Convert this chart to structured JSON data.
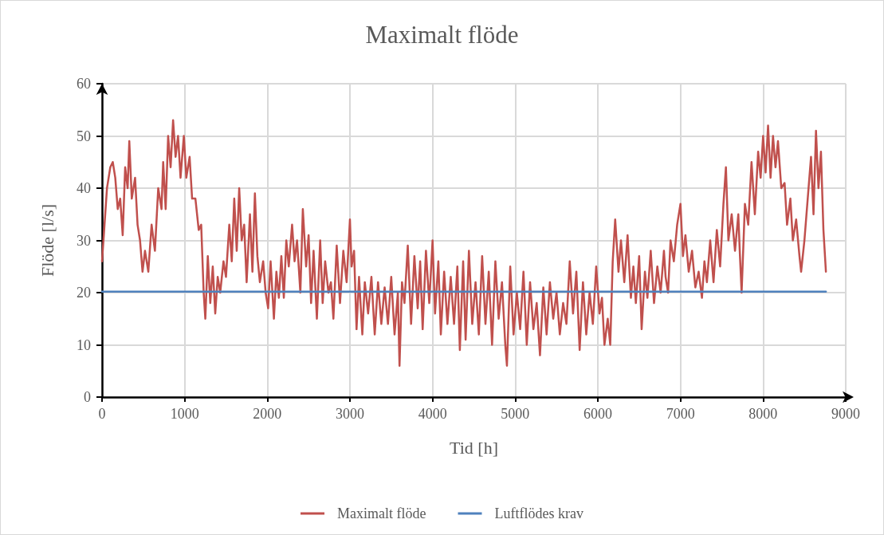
{
  "chart_data": {
    "type": "line",
    "title": "Maximalt flöde",
    "xlabel": "Tid [h]",
    "ylabel": "Flöde [l/s]",
    "xlim": [
      0,
      9000
    ],
    "xticks": [
      0,
      1000,
      2000,
      3000,
      4000,
      5000,
      6000,
      7000,
      8000,
      9000
    ],
    "ylim": [
      0,
      60
    ],
    "yticks": [
      0,
      10,
      20,
      30,
      40,
      50,
      60
    ],
    "grid": true,
    "legend": "bottom",
    "marker": "none",
    "line_style": "solid",
    "x": [
      0,
      30,
      60,
      100,
      130,
      160,
      190,
      220,
      250,
      280,
      310,
      330,
      360,
      400,
      430,
      460,
      490,
      520,
      560,
      600,
      640,
      680,
      720,
      740,
      770,
      800,
      830,
      860,
      890,
      920,
      950,
      990,
      1020,
      1060,
      1090,
      1130,
      1170,
      1200,
      1230,
      1250,
      1280,
      1310,
      1340,
      1370,
      1400,
      1430,
      1470,
      1500,
      1540,
      1570,
      1600,
      1630,
      1660,
      1690,
      1720,
      1750,
      1790,
      1820,
      1850,
      1880,
      1910,
      1950,
      1980,
      2010,
      2040,
      2080,
      2110,
      2140,
      2170,
      2200,
      2230,
      2260,
      2300,
      2330,
      2360,
      2400,
      2430,
      2470,
      2500,
      2530,
      2560,
      2600,
      2640,
      2670,
      2700,
      2740,
      2770,
      2800,
      2840,
      2880,
      2920,
      2960,
      3000,
      3020,
      3050,
      3080,
      3110,
      3150,
      3180,
      3220,
      3260,
      3300,
      3340,
      3380,
      3420,
      3460,
      3500,
      3540,
      3580,
      3600,
      3630,
      3660,
      3700,
      3740,
      3780,
      3820,
      3850,
      3880,
      3920,
      3960,
      4000,
      4030,
      4070,
      4100,
      4140,
      4180,
      4220,
      4260,
      4300,
      4330,
      4370,
      4400,
      4440,
      4480,
      4520,
      4560,
      4600,
      4640,
      4680,
      4720,
      4760,
      4800,
      4840,
      4880,
      4900,
      4940,
      4980,
      5020,
      5060,
      5100,
      5140,
      5180,
      5220,
      5260,
      5300,
      5340,
      5380,
      5420,
      5460,
      5500,
      5540,
      5580,
      5620,
      5660,
      5700,
      5740,
      5780,
      5820,
      5860,
      5900,
      5940,
      5980,
      6020,
      6050,
      6080,
      6120,
      6150,
      6180,
      6210,
      6250,
      6280,
      6320,
      6360,
      6400,
      6430,
      6460,
      6500,
      6530,
      6570,
      6600,
      6640,
      6680,
      6720,
      6760,
      6800,
      6820,
      6850,
      6880,
      6920,
      6960,
      7000,
      7030,
      7060,
      7100,
      7140,
      7180,
      7220,
      7260,
      7290,
      7320,
      7360,
      7400,
      7440,
      7480,
      7520,
      7550,
      7580,
      7620,
      7660,
      7700,
      7720,
      7740,
      7780,
      7820,
      7860,
      7900,
      7940,
      7970,
      8000,
      8030,
      8060,
      8090,
      8120,
      8150,
      8180,
      8220,
      8260,
      8290,
      8330,
      8360,
      8400,
      8440,
      8460,
      8500,
      8540,
      8580,
      8610,
      8640,
      8670,
      8700,
      8730,
      8760
    ],
    "series": [
      {
        "name": "Maximalt flöde",
        "color": "#c0504d",
        "values": [
          26,
          33,
          40,
          44,
          45,
          42,
          36,
          38,
          31,
          44,
          40,
          49,
          38,
          42,
          33,
          30,
          24,
          28,
          24,
          33,
          28,
          40,
          36,
          45,
          36,
          50,
          44,
          53,
          46,
          50,
          42,
          50,
          42,
          46,
          38,
          38,
          32,
          33,
          20,
          15,
          27,
          18,
          25,
          16,
          23,
          20,
          26,
          23,
          33,
          26,
          38,
          28,
          40,
          30,
          33,
          22,
          35,
          24,
          39,
          27,
          22,
          26,
          20,
          17,
          26,
          15,
          24,
          19,
          27,
          19,
          30,
          25,
          33,
          26,
          30,
          20,
          36,
          25,
          31,
          18,
          28,
          15,
          30,
          18,
          26,
          20,
          22,
          15,
          29,
          18,
          28,
          22,
          34,
          25,
          28,
          13,
          23,
          12,
          22,
          16,
          23,
          12,
          22,
          14,
          21,
          14,
          23,
          12,
          20,
          6,
          22,
          18,
          29,
          14,
          27,
          17,
          26,
          13,
          28,
          18,
          30,
          16,
          26,
          12,
          24,
          14,
          23,
          14,
          25,
          9,
          26,
          11,
          28,
          14,
          22,
          12,
          27,
          14,
          24,
          10,
          26,
          15,
          22,
          10,
          6,
          25,
          12,
          20,
          13,
          24,
          10,
          22,
          13,
          18,
          8,
          21,
          12,
          22,
          15,
          20,
          12,
          18,
          14,
          26,
          16,
          24,
          9,
          22,
          12,
          20,
          14,
          25,
          16,
          19,
          10,
          15,
          10,
          26,
          34,
          24,
          30,
          22,
          31,
          19,
          25,
          18,
          27,
          13,
          24,
          19,
          28,
          18,
          25,
          20,
          28,
          23,
          20,
          30,
          26,
          33,
          37,
          27,
          31,
          24,
          28,
          21,
          24,
          19,
          26,
          22,
          30,
          22,
          32,
          25,
          37,
          44,
          30,
          35,
          28,
          35,
          27,
          20,
          37,
          33,
          45,
          35,
          47,
          42,
          50,
          43,
          52,
          42,
          50,
          44,
          49,
          40,
          41,
          33,
          38,
          30,
          34,
          27,
          24,
          30,
          38,
          46,
          35,
          51,
          40,
          47,
          32,
          24
        ]
      },
      {
        "name": "Luftflödes krav",
        "color": "#4f81bd",
        "x": [
          0,
          8760
        ],
        "values": [
          20.2,
          20.2
        ]
      }
    ]
  }
}
